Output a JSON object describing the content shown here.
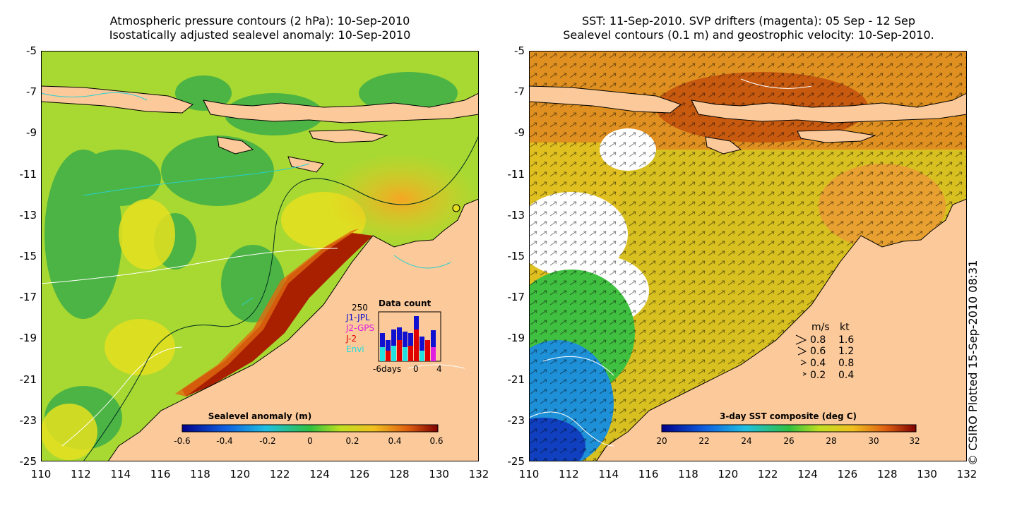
{
  "left_panel": {
    "title_line1": "Atmospheric pressure contours (2 hPa): 10-Sep-2010",
    "title_line2": "Isostatically adjusted sealevel anomaly: 10-Sep-2010",
    "colorbar": {
      "title": "Sealevel anomaly (m)",
      "ticks": [
        "-0.6",
        "-0.4",
        "-0.2",
        "0",
        "0.2",
        "0.4",
        "0.6"
      ],
      "range": [
        -0.6,
        0.6
      ]
    },
    "data_count": {
      "title": "Data count",
      "y_max_label": "250",
      "series": [
        {
          "name": "J1-JPL",
          "color": "#1010d0"
        },
        {
          "name": "J2-GPS",
          "color": "#e020e0"
        },
        {
          "name": "J-2",
          "color": "#e00000"
        },
        {
          "name": "Envi",
          "color": "#20e0e0"
        }
      ],
      "x_labels": [
        "-6days",
        "0",
        "4"
      ]
    }
  },
  "right_panel": {
    "title_line1": "SST: 11-Sep-2010. SVP drifters (magenta): 05 Sep - 12 Sep",
    "title_line2": "Sealevel contours (0.1 m) and geostrophic velocity: 10-Sep-2010.",
    "colorbar": {
      "title": "3-day SST composite (deg C)",
      "ticks": [
        "20",
        "22",
        "24",
        "26",
        "28",
        "30",
        "32"
      ],
      "range": [
        20,
        32
      ]
    },
    "velocity_legend": {
      "header_ms": "m/s",
      "header_kt": "kt",
      "rows": [
        {
          "ms": "0.8",
          "kt": "1.6"
        },
        {
          "ms": "0.6",
          "kt": "1.2"
        },
        {
          "ms": "0.4",
          "kt": "0.8"
        },
        {
          "ms": "0.2",
          "kt": "0.4"
        }
      ]
    }
  },
  "axes": {
    "lat_ticks": [
      "-5",
      "-7",
      "-9",
      "-11",
      "-13",
      "-15",
      "-17",
      "-19",
      "-21",
      "-23",
      "-25"
    ],
    "lon_ticks": [
      "110",
      "112",
      "114",
      "116",
      "118",
      "120",
      "122",
      "124",
      "126",
      "128",
      "130",
      "132"
    ],
    "lat_range": [
      -25,
      -5
    ],
    "lon_range": [
      110,
      132
    ]
  },
  "credit": "© CSIRO Plotted 15-Sep-2010 08:31",
  "colors": {
    "land": "#fbc99a",
    "sla_low": "#2a9a3a",
    "sla_mid": "#b8e020",
    "sla_high": "#8b1400",
    "sst_warm": "#e8a020",
    "sst_cool": "#1e90d8"
  }
}
